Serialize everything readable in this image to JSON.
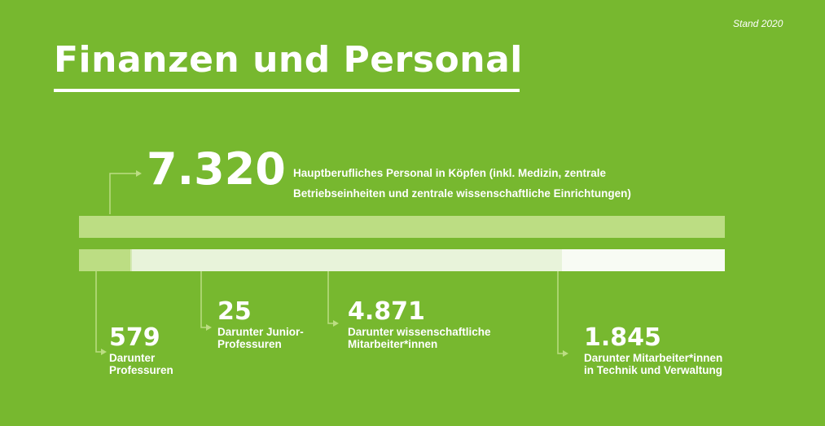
{
  "stand": "Stand 2020",
  "title": "Finanzen und Personal",
  "colors": {
    "background": "#77b82f",
    "bar_total": "#bcdd83",
    "seg_professuren": "#bcdd83",
    "seg_junior": "#d3e8b2",
    "seg_wiss": "#e8f3da",
    "seg_technik": "#f8fbf4",
    "connector": "#bcdd83"
  },
  "total": {
    "value": "7.320",
    "label": "Hauptberufliches Personal in Köpfen (inkl. Medizin, zentrale Betriebseinheiten und zentrale wissenschaftliche Einrichtungen)"
  },
  "chart_data": {
    "type": "bar",
    "orientation": "horizontal-stacked",
    "total": 7320,
    "series": [
      {
        "name": "Darunter Professuren",
        "value": 579,
        "display": "579",
        "color": "#bcdd83"
      },
      {
        "name": "Darunter Junior-Professuren",
        "value": 25,
        "display": "25",
        "color": "#d3e8b2"
      },
      {
        "name": "Darunter wissenschaftliche Mitarbeiter*innen",
        "value": 4871,
        "display": "4.871",
        "color": "#e8f3da"
      },
      {
        "name": "Darunter Mitarbeiter*innen in Technik und Verwaltung",
        "value": 1845,
        "display": "1.845",
        "color": "#f8fbf4"
      }
    ]
  },
  "stats": {
    "professuren": {
      "value": "579",
      "label": "Darunter\nProfessuren"
    },
    "junior": {
      "value": "25",
      "label": "Darunter  Junior-\nProfessuren"
    },
    "wiss": {
      "value": "4.871",
      "label": "Darunter wissenschaftliche\nMitarbeiter*innen"
    },
    "technik": {
      "value": "1.845",
      "label": "Darunter Mitarbeiter*innen\nin Technik und Verwaltung"
    }
  }
}
